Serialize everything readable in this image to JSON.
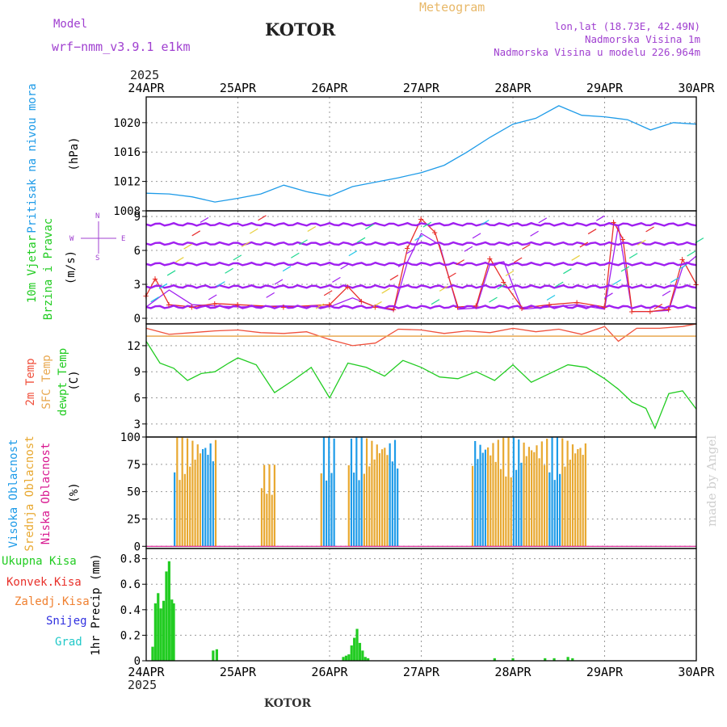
{
  "header": {
    "model_label": "Model",
    "model_name": "wrf−nmm_v3.9.1  e1km",
    "station": "KOTOR",
    "meteogram": "Meteogram",
    "lonlat": "lon,lat (18.73E, 42.49N)",
    "elev": "Nadmorska Visina 1m",
    "elev_model": "Nadmorska Visina u modelu 226.964m",
    "year_top": "2025",
    "year_bottom": "2025",
    "footer": "KOTOR",
    "credit": "made by Angel"
  },
  "colors": {
    "pressure": "#1e9be8",
    "wind_speed": "#a020f0",
    "gust": "#e8302a",
    "temp2m": "#f0503c",
    "sfc_temp": "#e8a850",
    "dewpt": "#22cc22",
    "cloud_high": "#1e9be8",
    "cloud_mid": "#e8a830",
    "cloud_low": "#d81890",
    "precip_total": "#22cc22",
    "precip_conv": "#e8302a",
    "precip_large": "#f08030",
    "snow": "#3030e0",
    "hail": "#20c8c8"
  },
  "chart_data": {
    "type": "meteogram",
    "x_tick_labels": [
      "24APR",
      "25APR",
      "26APR",
      "27APR",
      "28APR",
      "29APR",
      "30APR"
    ],
    "x_range_days": [
      0,
      6
    ],
    "panels": [
      {
        "name": "pressure",
        "labels": [
          "Pritisak na nivou mora"
        ],
        "unit": "(hPa)",
        "ylim": [
          1008,
          1023.5
        ],
        "yticks": [
          1008,
          1012,
          1016,
          1020
        ],
        "series": [
          {
            "key": "pressure",
            "x": [
              0,
              0.25,
              0.5,
              0.75,
              1.0,
              1.25,
              1.5,
              1.75,
              2.0,
              2.25,
              2.5,
              2.75,
              3.0,
              3.25,
              3.5,
              3.75,
              4.0,
              4.25,
              4.5,
              4.75,
              5.0,
              5.25,
              5.5,
              5.75,
              6.0
            ],
            "y": [
              1010.4,
              1010.3,
              1009.9,
              1009.2,
              1009.7,
              1010.3,
              1011.5,
              1010.6,
              1010.0,
              1011.3,
              1011.9,
              1012.5,
              1013.2,
              1014.2,
              1016.0,
              1018.0,
              1019.8,
              1020.6,
              1022.3,
              1021.0,
              1020.8,
              1020.4,
              1019.0,
              1020.0,
              1019.8
            ]
          }
        ]
      },
      {
        "name": "wind",
        "labels": [
          "10m Vjetar",
          "Brzina i Pravac"
        ],
        "unit": "(m/s)",
        "compass": [
          "N",
          "W",
          "E",
          "S"
        ],
        "ylim": [
          -0.5,
          9.5
        ],
        "yticks": [
          0,
          3,
          6,
          9
        ],
        "wind_levels": [
          1,
          2.8,
          4.8,
          6.6,
          8.3
        ],
        "series": [
          {
            "key": "wind_speed",
            "x": [
              0,
              0.25,
              0.5,
              0.75,
              1.0,
              1.5,
              2.0,
              2.25,
              2.5,
              2.7,
              2.85,
              3.0,
              3.2,
              3.4,
              3.6,
              3.75,
              3.9,
              4.1,
              4.4,
              4.7,
              5.0,
              5.15,
              5.3,
              5.5,
              5.7,
              5.85,
              6.0
            ],
            "y": [
              1.0,
              2.5,
              1.2,
              1.1,
              1.0,
              1.1,
              1.0,
              1.8,
              1.0,
              0.7,
              5.0,
              7.5,
              6.5,
              0.8,
              0.9,
              4.8,
              5.0,
              0.8,
              1.0,
              1.2,
              0.8,
              8.2,
              0.6,
              0.6,
              0.7,
              4.5,
              5.5
            ]
          },
          {
            "key": "gust",
            "x": [
              0,
              0.1,
              0.25,
              0.5,
              0.75,
              1.0,
              1.5,
              2.0,
              2.2,
              2.35,
              2.5,
              2.7,
              2.85,
              3.0,
              3.15,
              3.4,
              3.6,
              3.75,
              3.9,
              4.1,
              4.4,
              4.7,
              5.0,
              5.1,
              5.2,
              5.3,
              5.5,
              5.7,
              5.85,
              6.0
            ],
            "y": [
              2.0,
              3.5,
              1.2,
              1.0,
              1.3,
              1.2,
              1.0,
              1.2,
              2.8,
              1.5,
              1.0,
              0.8,
              6.2,
              8.8,
              7.6,
              1.0,
              1.1,
              5.3,
              3.2,
              0.9,
              1.2,
              1.4,
              1.0,
              8.5,
              7.0,
              0.6,
              0.6,
              0.8,
              5.2,
              3.0
            ]
          }
        ]
      },
      {
        "name": "temperature",
        "labels": [
          "2m Temp",
          "SFC Temp",
          "dewpt Temp"
        ],
        "unit": "(C)",
        "ylim": [
          1.5,
          14.5
        ],
        "yticks": [
          3,
          6,
          9,
          12
        ],
        "series": [
          {
            "key": "temp2m",
            "x": [
              0,
              0.25,
              0.5,
              0.75,
              1.0,
              1.25,
              1.5,
              1.75,
              2.0,
              2.25,
              2.5,
              2.75,
              3.0,
              3.25,
              3.5,
              3.75,
              4.0,
              4.25,
              4.5,
              4.75,
              5.0,
              5.15,
              5.35,
              5.6,
              5.85,
              6.0
            ],
            "y": [
              14.0,
              13.3,
              13.5,
              13.7,
              13.8,
              13.5,
              13.4,
              13.6,
              12.7,
              12.0,
              12.3,
              13.9,
              13.8,
              13.4,
              13.7,
              13.5,
              14.0,
              13.6,
              13.9,
              13.3,
              14.2,
              12.5,
              14.0,
              14.0,
              14.2,
              14.5
            ]
          },
          {
            "key": "sfc_temp",
            "x": [
              0,
              6
            ],
            "y": [
              13.1,
              13.1
            ]
          },
          {
            "key": "dewpt",
            "x": [
              0,
              0.15,
              0.3,
              0.45,
              0.6,
              0.75,
              0.9,
              1.0,
              1.2,
              1.4,
              1.6,
              1.8,
              2.0,
              2.2,
              2.4,
              2.6,
              2.8,
              3.0,
              3.2,
              3.4,
              3.6,
              3.8,
              4.0,
              4.2,
              4.4,
              4.6,
              4.8,
              5.0,
              5.15,
              5.3,
              5.45,
              5.55,
              5.7,
              5.85,
              6.0
            ],
            "y": [
              12.5,
              10.0,
              9.4,
              8.0,
              8.8,
              9.0,
              10.0,
              10.6,
              9.8,
              6.6,
              8.0,
              9.5,
              6.0,
              10.0,
              9.5,
              8.5,
              10.3,
              9.5,
              8.4,
              8.2,
              9.0,
              8.0,
              9.8,
              7.8,
              8.8,
              9.8,
              9.5,
              8.2,
              7.0,
              5.5,
              4.8,
              2.5,
              6.5,
              6.8,
              4.7
            ]
          }
        ]
      },
      {
        "name": "cloud",
        "labels": [
          "Visoka Oblacnost",
          "Srednja Oblacnost",
          "Niska Oblacnost"
        ],
        "unit": "(%)",
        "ylim": [
          -2,
          100
        ],
        "yticks": [
          0,
          25,
          50,
          75,
          100
        ],
        "cloud_segments": [
          {
            "start": 0.3,
            "end": 0.75,
            "value": 100
          },
          {
            "start": 1.25,
            "end": 1.4,
            "value": 75
          },
          {
            "start": 1.9,
            "end": 2.05,
            "value": 100
          },
          {
            "start": 2.2,
            "end": 2.75,
            "value": 100
          },
          {
            "start": 3.55,
            "end": 4.8,
            "value": 100
          }
        ]
      },
      {
        "name": "precip",
        "labels": [
          "Ukupna Kisa",
          "Konvek.Kisa",
          "Zaledj.Kisa",
          "Snijeg",
          "Grad"
        ],
        "unit": "1hr Precip (mm)",
        "ylim": [
          0,
          0.88
        ],
        "yticks": [
          0,
          0.2,
          0.4,
          0.6,
          0.8
        ],
        "bars_x": [
          0.07,
          0.1,
          0.13,
          0.16,
          0.19,
          0.22,
          0.25,
          0.28,
          0.3,
          0.73,
          0.77,
          2.15,
          2.18,
          2.21,
          2.24,
          2.27,
          2.3,
          2.33,
          2.36,
          2.39,
          2.42,
          3.8,
          4.0,
          4.35,
          4.45,
          4.6,
          4.65
        ],
        "bars_y": [
          0.11,
          0.45,
          0.53,
          0.41,
          0.47,
          0.7,
          0.78,
          0.48,
          0.45,
          0.08,
          0.09,
          0.03,
          0.04,
          0.05,
          0.12,
          0.18,
          0.25,
          0.14,
          0.08,
          0.03,
          0.02,
          0.02,
          0.02,
          0.02,
          0.02,
          0.03,
          0.02
        ]
      }
    ]
  }
}
